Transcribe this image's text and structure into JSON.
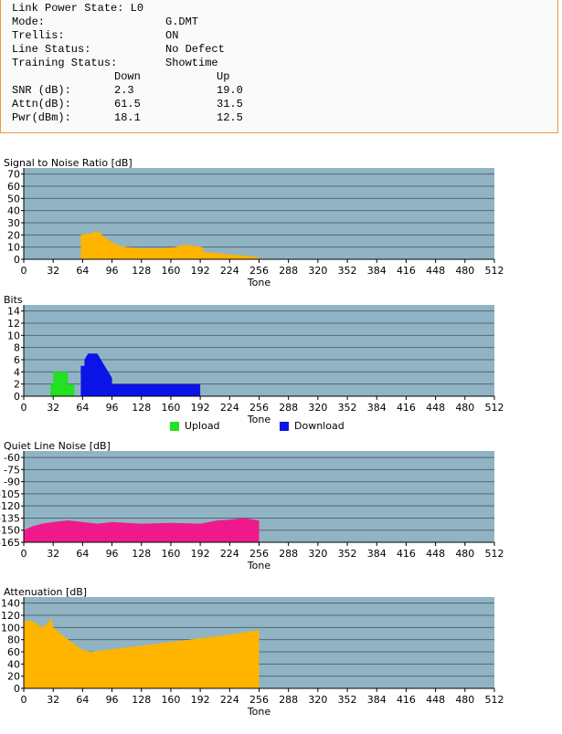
{
  "status": {
    "rows": [
      {
        "label": "Link Power State: L0",
        "value": ""
      },
      {
        "label": "Mode:",
        "value": "G.DMT"
      },
      {
        "label": "Trellis:",
        "value": "ON"
      },
      {
        "label": "Line Status:",
        "value": "No Defect"
      },
      {
        "label": "Training Status:",
        "value": "Showtime"
      }
    ],
    "col_down": "Down",
    "col_up": "Up",
    "metrics": [
      {
        "label": "SNR (dB):",
        "down": "2.3",
        "up": "19.0"
      },
      {
        "label": "Attn(dB):",
        "down": "61.5",
        "up": "31.5"
      },
      {
        "label": "Pwr(dBm):",
        "down": "18.1",
        "up": "12.5"
      }
    ]
  },
  "colors": {
    "plot_bg": "#90b4c3",
    "grid": "#556677",
    "orange": "#ffb400",
    "green": "#22e022",
    "blue": "#0a14e6",
    "pink": "#f0198c",
    "border": "#e89a3c"
  },
  "chart_data": [
    {
      "type": "area",
      "title": "Signal to Noise Ratio [dB]",
      "xlabel": "Tone",
      "x_ticks": [
        0,
        32,
        64,
        96,
        128,
        160,
        192,
        224,
        256,
        288,
        320,
        352,
        384,
        416,
        448,
        480,
        512
      ],
      "y_ticks": [
        0,
        10,
        20,
        30,
        40,
        50,
        60,
        70
      ],
      "ylim": [
        0,
        75
      ],
      "series": [
        {
          "color": "orange",
          "points": [
            [
              62,
              0
            ],
            [
              62,
              20
            ],
            [
              70,
              21
            ],
            [
              75,
              22
            ],
            [
              80,
              23
            ],
            [
              85,
              20
            ],
            [
              90,
              17
            ],
            [
              96,
              14
            ],
            [
              104,
              11
            ],
            [
              112,
              10
            ],
            [
              128,
              9
            ],
            [
              150,
              9
            ],
            [
              165,
              10
            ],
            [
              175,
              12
            ],
            [
              185,
              11
            ],
            [
              195,
              10
            ],
            [
              196,
              6
            ],
            [
              210,
              5
            ],
            [
              224,
              4
            ],
            [
              240,
              3
            ],
            [
              252,
              2
            ],
            [
              256,
              1
            ],
            [
              256,
              0
            ]
          ]
        }
      ]
    },
    {
      "type": "bar",
      "title": "Bits",
      "xlabel": "Tone",
      "x_ticks": [
        0,
        32,
        64,
        96,
        128,
        160,
        192,
        224,
        256,
        288,
        320,
        352,
        384,
        416,
        448,
        480,
        512
      ],
      "y_ticks": [
        0,
        2,
        4,
        6,
        8,
        10,
        12,
        14
      ],
      "ylim": [
        0,
        15
      ],
      "legend": [
        {
          "name": "Upload",
          "color": "green"
        },
        {
          "name": "Download",
          "color": "blue"
        }
      ],
      "series": [
        {
          "name": "Upload",
          "color": "green",
          "points": [
            [
              29,
              0
            ],
            [
              29,
              2
            ],
            [
              32,
              2
            ],
            [
              32,
              4
            ],
            [
              48,
              4
            ],
            [
              48,
              2
            ],
            [
              55,
              2
            ],
            [
              55,
              0
            ]
          ]
        },
        {
          "name": "Download",
          "color": "blue",
          "points": [
            [
              62,
              0
            ],
            [
              62,
              5
            ],
            [
              66,
              5
            ],
            [
              66,
              6
            ],
            [
              70,
              7
            ],
            [
              75,
              7
            ],
            [
              80,
              7
            ],
            [
              84,
              6
            ],
            [
              88,
              5
            ],
            [
              92,
              4
            ],
            [
              96,
              3
            ],
            [
              96,
              2
            ],
            [
              150,
              2
            ],
            [
              192,
              2
            ],
            [
              192,
              0
            ]
          ]
        }
      ]
    },
    {
      "type": "area",
      "title": "Quiet Line Noise [dB]",
      "xlabel": "Tone",
      "x_ticks": [
        0,
        32,
        64,
        96,
        128,
        160,
        192,
        224,
        256,
        288,
        320,
        352,
        384,
        416,
        448,
        480,
        512
      ],
      "y_ticks": [
        -60,
        -75,
        -90,
        -105,
        -120,
        -135,
        -150,
        -165
      ],
      "ylim": [
        -165,
        -52
      ],
      "series": [
        {
          "color": "pink",
          "points": [
            [
              0,
              -165
            ],
            [
              0,
              -150
            ],
            [
              10,
              -145
            ],
            [
              20,
              -142
            ],
            [
              32,
              -140
            ],
            [
              48,
              -138
            ],
            [
              64,
              -140
            ],
            [
              80,
              -142
            ],
            [
              96,
              -140
            ],
            [
              128,
              -142
            ],
            [
              160,
              -141
            ],
            [
              192,
              -142
            ],
            [
              210,
              -138
            ],
            [
              224,
              -137
            ],
            [
              240,
              -135
            ],
            [
              256,
              -138
            ],
            [
              256,
              -165
            ]
          ]
        }
      ]
    },
    {
      "type": "area",
      "title": "Attenuation [dB]",
      "xlabel": "Tone",
      "x_ticks": [
        0,
        32,
        64,
        96,
        128,
        160,
        192,
        224,
        256,
        288,
        320,
        352,
        384,
        416,
        448,
        480,
        512
      ],
      "y_ticks": [
        0,
        20,
        40,
        60,
        80,
        100,
        120,
        140
      ],
      "ylim": [
        0,
        150
      ],
      "series": [
        {
          "color": "orange",
          "points": [
            [
              0,
              0
            ],
            [
              0,
              110
            ],
            [
              8,
              112
            ],
            [
              15,
              105
            ],
            [
              20,
              100
            ],
            [
              25,
              105
            ],
            [
              30,
              115
            ],
            [
              32,
              100
            ],
            [
              40,
              90
            ],
            [
              50,
              78
            ],
            [
              64,
              63
            ],
            [
              72,
              60
            ],
            [
              80,
              61
            ],
            [
              100,
              65
            ],
            [
              128,
              70
            ],
            [
              160,
              76
            ],
            [
              192,
              82
            ],
            [
              224,
              88
            ],
            [
              256,
              96
            ],
            [
              256,
              0
            ]
          ]
        }
      ]
    }
  ]
}
